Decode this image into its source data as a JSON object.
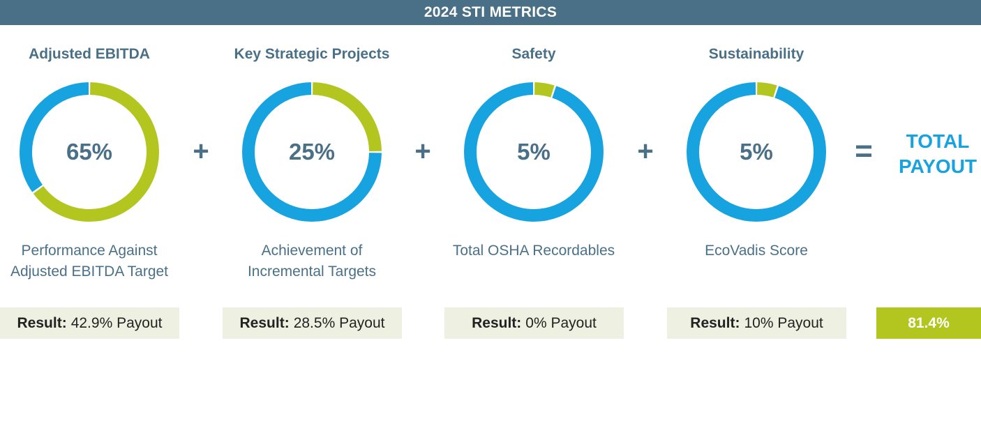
{
  "banner": {
    "title": "2024 STI METRICS"
  },
  "colors": {
    "banner": "#4a7088",
    "weight": "#b3c51f",
    "remainder": "#17a2e0",
    "text": "#4a7088",
    "result_bg": "#eef1e2"
  },
  "chart_data": [
    {
      "type": "pie",
      "title": "Adjusted EBITDA",
      "center_label": "65%",
      "values": [
        65,
        35
      ],
      "description": [
        "Performance Against",
        "Adjusted EBITDA Target"
      ],
      "result_label": "Result:",
      "result_value": "42.9% Payout"
    },
    {
      "type": "pie",
      "title": "Key Strategic Projects",
      "center_label": "25%",
      "values": [
        25,
        75
      ],
      "description": [
        "Achievement of",
        "Incremental Targets"
      ],
      "result_label": "Result:",
      "result_value": "28.5% Payout"
    },
    {
      "type": "pie",
      "title": "Safety",
      "center_label": "5%",
      "values": [
        5,
        95
      ],
      "description": [
        "Total OSHA Recordables"
      ],
      "result_label": "Result:",
      "result_value": "0% Payout"
    },
    {
      "type": "pie",
      "title": "Sustainability",
      "center_label": "5%",
      "values": [
        5,
        95
      ],
      "description": [
        "EcoVadis Score"
      ],
      "result_label": "Result:",
      "result_value": "10% Payout"
    }
  ],
  "operators": {
    "plus": "+",
    "equals": "="
  },
  "total": {
    "label_line1": "TOTAL",
    "label_line2": "PAYOUT",
    "value": "81.4%"
  }
}
